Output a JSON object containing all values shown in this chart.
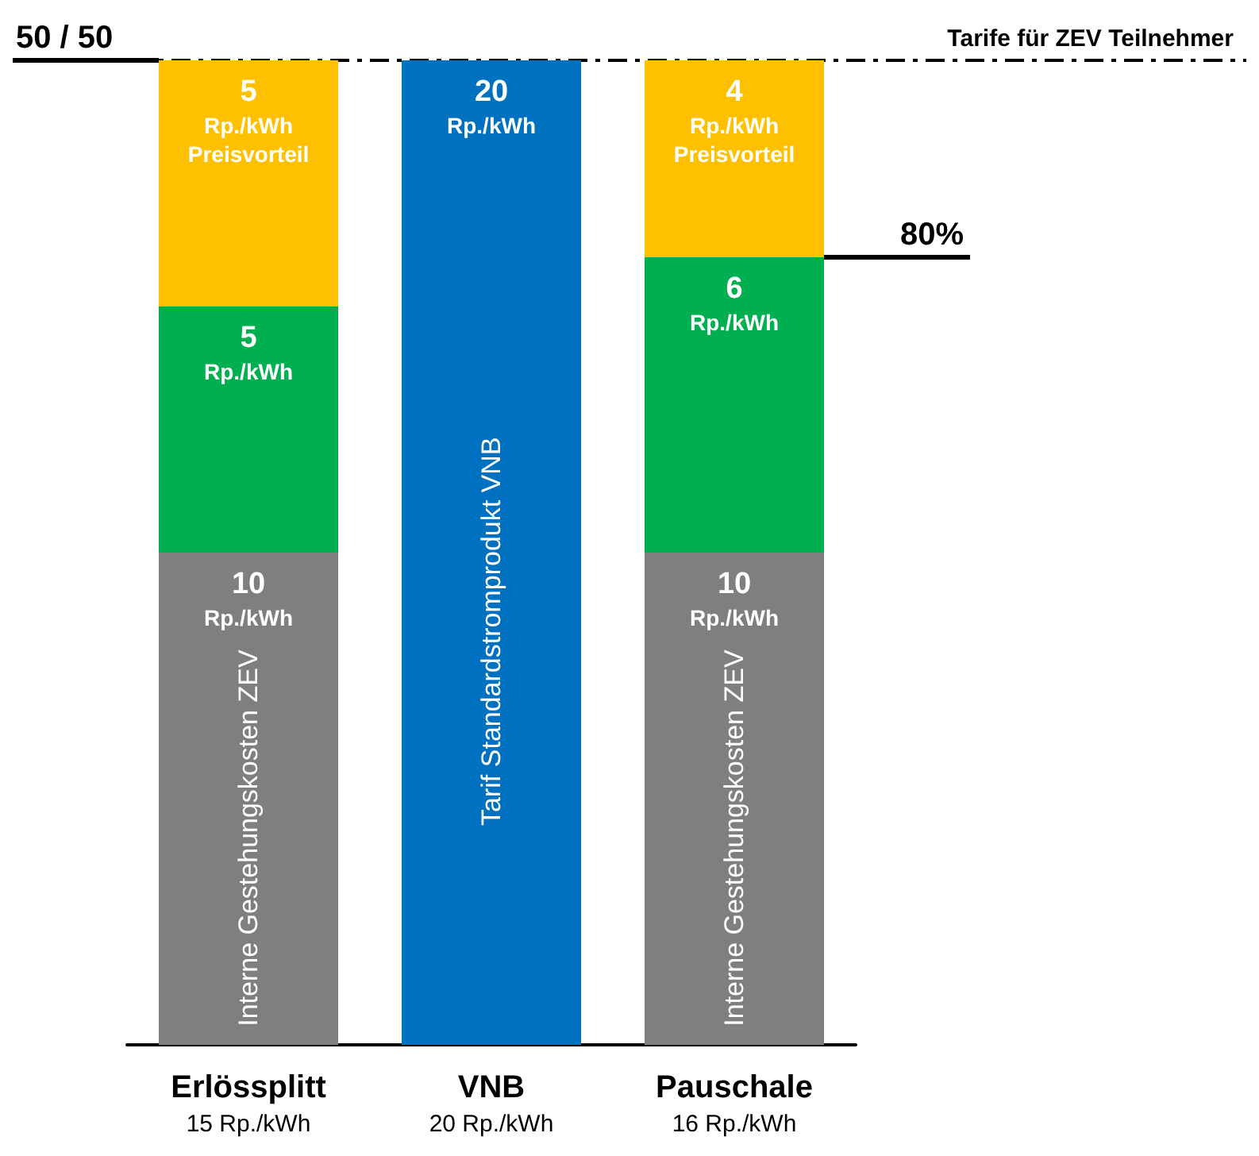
{
  "chart_data": {
    "type": "bar",
    "stacked": true,
    "categories": [
      "Erlössplitt\n15 Rp./kWh",
      "VNB\n20 Rp./kWh",
      "Pauschale\n16 Rp./kWh"
    ],
    "series": [
      {
        "name": "Interne Gestehungskosten ZEV",
        "color": "#7f7f7f",
        "values": [
          10,
          null,
          10
        ],
        "value_labels": [
          "10\nRp./kWh",
          null,
          "10\nRp./kWh"
        ]
      },
      {
        "name": "Tarif Standardstromprodukt VNB",
        "color": "#0070c0",
        "values": [
          null,
          20,
          null
        ],
        "value_labels": [
          null,
          "20\nRp./kWh",
          null
        ]
      },
      {
        "color": "#00b050",
        "values": [
          5,
          null,
          6
        ],
        "value_labels": [
          "5\nRp./kWh",
          null,
          "6\nRp./kWh"
        ]
      },
      {
        "color": "#ffc000",
        "values": [
          5,
          null,
          4
        ],
        "value_labels": [
          "5\nRp./kWh\nPreisvorteil",
          null,
          "4\nRp./kWh\nPreisvorteil"
        ]
      }
    ],
    "ref_lines": [
      {
        "axis": "y",
        "value": 20,
        "label": "Tarife für ZEV Teilnehmer",
        "line_style": "dashed"
      }
    ],
    "annotations": [
      "50 / 50",
      "80%"
    ]
  }
}
